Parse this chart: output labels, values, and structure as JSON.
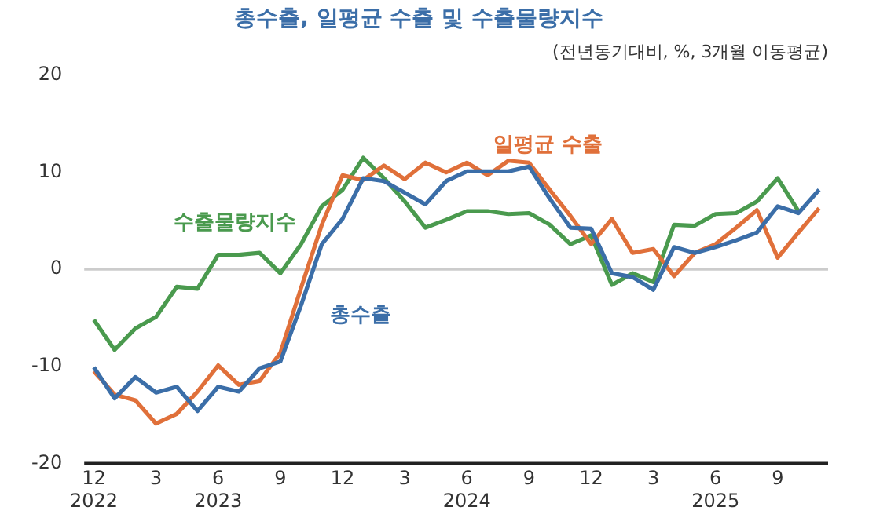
{
  "chart_data": {
    "type": "line",
    "title": "총수출, 일평균 수출 및 수출물량지수",
    "subtitle": "(전년동기대비, %, 3개월 이동평균)",
    "x": [
      "2022-12",
      "2023-01",
      "2023-02",
      "2023-03",
      "2023-04",
      "2023-05",
      "2023-06",
      "2023-07",
      "2023-08",
      "2023-09",
      "2023-10",
      "2023-11",
      "2023-12",
      "2024-01",
      "2024-02",
      "2024-03",
      "2024-04",
      "2024-05",
      "2024-06",
      "2024-07",
      "2024-08",
      "2024-09",
      "2024-10",
      "2024-11",
      "2024-12",
      "2025-01",
      "2025-02",
      "2025-03",
      "2025-04",
      "2025-05",
      "2025-06",
      "2025-07",
      "2025-08",
      "2025-09",
      "2025-10",
      "2025-11"
    ],
    "xlim": [
      "2022-11-17",
      "2025-11-14"
    ],
    "xticks": [
      {
        "value": "2022-12",
        "label": "12\n2022"
      },
      {
        "value": "2023-03",
        "label": "3"
      },
      {
        "value": "2023-06",
        "label": "6\n2023"
      },
      {
        "value": "2023-09",
        "label": "9"
      },
      {
        "value": "2023-12",
        "label": "12"
      },
      {
        "value": "2024-03",
        "label": "3"
      },
      {
        "value": "2024-06",
        "label": "6\n2024"
      },
      {
        "value": "2024-09",
        "label": "9"
      },
      {
        "value": "2024-12",
        "label": "12"
      },
      {
        "value": "2025-03",
        "label": "3"
      },
      {
        "value": "2025-06",
        "label": "6\n2025"
      },
      {
        "value": "2025-09",
        "label": "9"
      }
    ],
    "ylim": [
      -20,
      20
    ],
    "yticks": [
      -20,
      -10,
      0,
      10,
      20
    ],
    "ref_lines": [
      {
        "axis": "y",
        "value": 0,
        "color": "#cccccc"
      }
    ],
    "legend": false,
    "marker": "none",
    "line_style": "solid",
    "series": [
      {
        "name": "총수출",
        "color": "#3b6ea8",
        "values": [
          -10.1,
          -13.3,
          -11.1,
          -12.7,
          -12.1,
          -14.6,
          -12.1,
          -12.6,
          -10.2,
          -9.5,
          -3.7,
          2.6,
          5.2,
          9.4,
          9.1,
          7.9,
          6.7,
          9.1,
          10.1,
          10.1,
          10.1,
          10.6,
          7.3,
          4.3,
          4.2,
          -0.4,
          -0.8,
          -2.1,
          2.3,
          1.7,
          2.3,
          3.0,
          3.8,
          6.5,
          5.8,
          8.2
        ]
      },
      {
        "name": "일평균 수출",
        "color": "#e0703a",
        "values": [
          -10.5,
          -12.9,
          -13.5,
          -15.9,
          -14.9,
          -12.6,
          -9.9,
          -11.9,
          -11.5,
          -8.6,
          -1.9,
          4.6,
          9.7,
          9.2,
          10.7,
          9.3,
          11.0,
          10.0,
          11.0,
          9.7,
          11.2,
          11.0,
          8.2,
          5.5,
          2.6,
          5.2,
          1.7,
          2.1,
          -0.7,
          1.7,
          2.6,
          4.3,
          6.1,
          1.2,
          3.8,
          6.3
        ]
      },
      {
        "name": "수출물량지수",
        "color": "#4a9a4e",
        "values": [
          -5.2,
          -8.3,
          -6.1,
          -4.9,
          -1.8,
          -2.0,
          1.5,
          1.5,
          1.7,
          -0.4,
          2.6,
          6.5,
          8.2,
          11.5,
          9.4,
          7.0,
          4.3,
          5.1,
          6.0,
          6.0,
          5.7,
          5.8,
          4.6,
          2.6,
          3.5,
          -1.6,
          -0.4,
          -1.3,
          4.6,
          4.5,
          5.7,
          5.8,
          7.0,
          9.4,
          6.0,
          null
        ]
      }
    ]
  }
}
